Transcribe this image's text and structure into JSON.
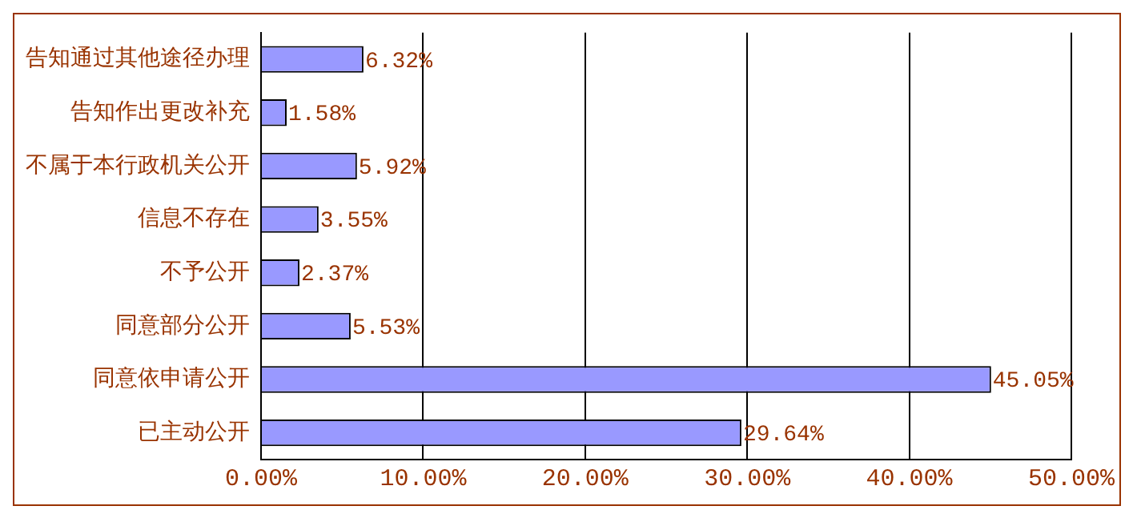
{
  "chart_data": {
    "type": "bar",
    "orientation": "horizontal",
    "categories": [
      "告知通过其他途径办理",
      "告知作出更改补充",
      "不属于本行政机关公开",
      "信息不存在",
      "不予公开",
      "同意部分公开",
      "同意依申请公开",
      "已主动公开"
    ],
    "values": [
      6.32,
      1.58,
      5.92,
      3.55,
      2.37,
      5.53,
      45.05,
      29.64
    ],
    "value_labels": [
      "6.32%",
      "1.58%",
      "5.92%",
      "3.55%",
      "2.37%",
      "5.53%",
      "45.05%",
      "29.64%"
    ],
    "color": "#9999ff",
    "xlim": [
      0,
      50
    ],
    "xticks": [
      {
        "value": 0,
        "label": "0.00%"
      },
      {
        "value": 10,
        "label": "10.00%"
      },
      {
        "value": 20,
        "label": "20.00%"
      },
      {
        "value": 30,
        "label": "30.00%"
      },
      {
        "value": 40,
        "label": "40.00%"
      },
      {
        "value": 50,
        "label": "50.00%"
      }
    ],
    "grid": "x"
  }
}
